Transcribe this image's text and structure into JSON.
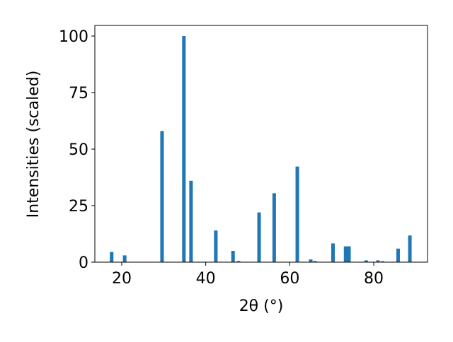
{
  "chart_data": {
    "type": "bar",
    "x_label": "2θ (°)",
    "y_label": "Intensities (scaled)",
    "x": [
      17.6,
      20.7,
      29.6,
      34.8,
      36.5,
      42.4,
      46.5,
      47.8,
      52.7,
      56.3,
      61.8,
      65.0,
      66.0,
      70.3,
      73.3,
      74.1,
      78.2,
      81.0,
      82.1,
      85.8,
      88.6
    ],
    "values": [
      4.5,
      3,
      58,
      100,
      36,
      14,
      5,
      0.5,
      22,
      30.5,
      42.3,
      1.2,
      0.5,
      8.3,
      7,
      7,
      0.8,
      0.8,
      0.4,
      6,
      11.8
    ],
    "color": "#1f77b4",
    "xlim": [
      13.6,
      92.8
    ],
    "xticks": [
      20,
      40,
      60,
      80
    ],
    "ylim": [
      0,
      104.7
    ],
    "yticks": [
      0,
      25,
      50,
      75,
      100
    ]
  }
}
